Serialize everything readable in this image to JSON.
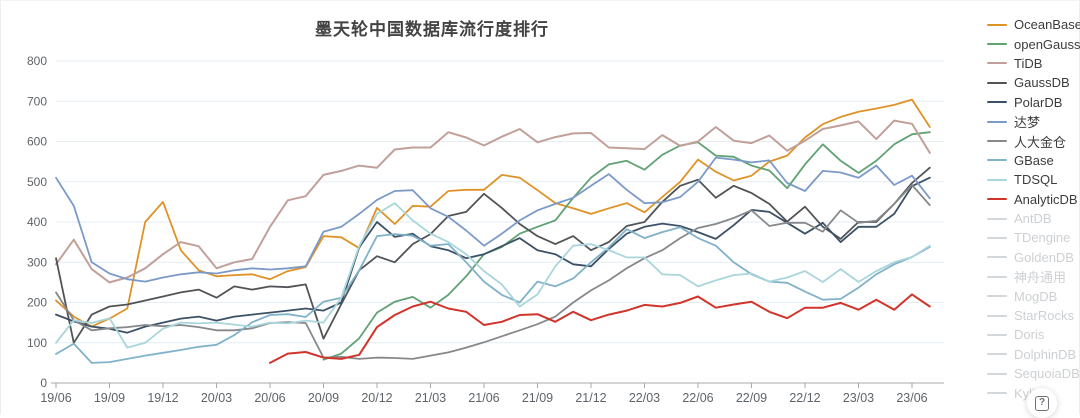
{
  "title": "墨天轮中国数据库流行度排行",
  "help_button": {
    "label": "?"
  },
  "chart_data": {
    "type": "line",
    "title": "墨天轮中国数据库流行度排行",
    "grid": true,
    "legend_position": "right",
    "ylim": [
      0,
      800
    ],
    "y_ticks": [
      0,
      100,
      200,
      300,
      400,
      500,
      600,
      700,
      800
    ],
    "x_tick_labels": [
      "19/06",
      "19/09",
      "19/12",
      "20/03",
      "20/06",
      "20/09",
      "20/12",
      "21/03",
      "21/06",
      "21/09",
      "21/12",
      "22/03",
      "22/06",
      "22/09",
      "22/12",
      "23/03",
      "23/06"
    ],
    "x": [
      "19/06",
      "19/07",
      "19/08",
      "19/09",
      "19/10",
      "19/11",
      "19/12",
      "20/01",
      "20/02",
      "20/03",
      "20/04",
      "20/05",
      "20/06",
      "20/07",
      "20/08",
      "20/09",
      "20/10",
      "20/11",
      "20/12",
      "21/01",
      "21/02",
      "21/03",
      "21/04",
      "21/05",
      "21/06",
      "21/07",
      "21/08",
      "21/09",
      "21/10",
      "21/11",
      "21/12",
      "22/01",
      "22/02",
      "22/03",
      "22/04",
      "22/05",
      "22/06",
      "22/07",
      "22/08",
      "22/09",
      "22/10",
      "22/11",
      "22/12",
      "23/01",
      "23/02",
      "23/03",
      "23/04",
      "23/05",
      "23/06",
      "23/07"
    ],
    "series": [
      {
        "id": "oceanbase",
        "name": "OceanBase",
        "color": "#df9226",
        "width": 1.8,
        "muted": false,
        "values": [
          205,
          165,
          140,
          160,
          185,
          400,
          450,
          330,
          280,
          265,
          268,
          270,
          258,
          278,
          288,
          365,
          362,
          335,
          435,
          395,
          440,
          438,
          477,
          480,
          480,
          517,
          510,
          479,
          447,
          434,
          420,
          434,
          447,
          424,
          462,
          500,
          555,
          525,
          503,
          515,
          550,
          565,
          610,
          643,
          661,
          674,
          682,
          691,
          704,
          636
        ]
      },
      {
        "id": "opengauss",
        "name": "openGauss",
        "color": "#61a273",
        "width": 1.8,
        "muted": false,
        "values": [
          null,
          null,
          null,
          null,
          null,
          null,
          null,
          null,
          null,
          null,
          null,
          null,
          null,
          null,
          null,
          58,
          73,
          111,
          175,
          202,
          214,
          187,
          219,
          265,
          320,
          338,
          371,
          388,
          404,
          460,
          510,
          543,
          552,
          530,
          567,
          590,
          598,
          565,
          562,
          540,
          528,
          484,
          543,
          593,
          552,
          522,
          552,
          593,
          618,
          623
        ]
      },
      {
        "id": "tidb",
        "name": "TiDB",
        "color": "#c2a09a",
        "width": 2,
        "muted": false,
        "values": [
          295,
          356,
          283,
          250,
          262,
          285,
          320,
          350,
          340,
          285,
          300,
          308,
          388,
          454,
          464,
          517,
          527,
          540,
          535,
          580,
          585,
          585,
          623,
          610,
          590,
          612,
          631,
          598,
          611,
          620,
          621,
          585,
          583,
          581,
          616,
          589,
          600,
          636,
          602,
          596,
          615,
          577,
          602,
          631,
          640,
          650,
          606,
          652,
          644,
          572
        ]
      },
      {
        "id": "gaussdb",
        "name": "GaussDB",
        "color": "#515457",
        "width": 1.8,
        "muted": false,
        "values": [
          310,
          100,
          170,
          190,
          195,
          205,
          215,
          225,
          232,
          212,
          240,
          232,
          240,
          238,
          245,
          110,
          196,
          280,
          315,
          300,
          345,
          370,
          415,
          425,
          470,
          435,
          395,
          365,
          345,
          365,
          330,
          350,
          390,
          400,
          450,
          490,
          505,
          460,
          490,
          472,
          445,
          401,
          438,
          388,
          358,
          400,
          400,
          445,
          497,
          535
        ]
      },
      {
        "id": "polardb",
        "name": "PolarDB",
        "color": "#3d5166",
        "width": 1.8,
        "muted": false,
        "values": [
          170,
          153,
          140,
          135,
          125,
          140,
          150,
          160,
          165,
          155,
          165,
          170,
          175,
          180,
          185,
          180,
          200,
          337,
          400,
          363,
          371,
          340,
          330,
          310,
          320,
          340,
          360,
          330,
          320,
          295,
          290,
          333,
          371,
          388,
          396,
          390,
          375,
          358,
          392,
          430,
          425,
          398,
          371,
          398,
          350,
          388,
          388,
          420,
          489,
          510
        ]
      },
      {
        "id": "dameng",
        "name": "达梦",
        "color": "#7b9ac8",
        "width": 1.8,
        "muted": false,
        "values": [
          510,
          440,
          300,
          272,
          258,
          252,
          262,
          270,
          275,
          272,
          280,
          285,
          282,
          285,
          290,
          376,
          388,
          420,
          455,
          477,
          479,
          434,
          413,
          379,
          341,
          371,
          404,
          429,
          445,
          460,
          490,
          519,
          480,
          447,
          449,
          462,
          500,
          560,
          555,
          548,
          553,
          497,
          477,
          527,
          523,
          510,
          540,
          492,
          515,
          459
        ]
      },
      {
        "id": "kingbase",
        "name": "人大金仓",
        "color": "#86888b",
        "width": 1.8,
        "muted": false,
        "values": [
          225,
          156,
          131,
          136,
          139,
          144,
          141,
          144,
          139,
          131,
          131,
          136,
          149,
          151,
          149,
          63,
          65,
          60,
          63,
          62,
          60,
          68,
          76,
          88,
          101,
          116,
          131,
          146,
          165,
          200,
          230,
          255,
          285,
          310,
          330,
          360,
          385,
          395,
          410,
          429,
          390,
          398,
          398,
          376,
          429,
          398,
          403,
          445,
          492,
          442
        ]
      },
      {
        "id": "gbase",
        "name": "GBase",
        "color": "#81b2c9",
        "width": 1.8,
        "muted": false,
        "values": [
          72,
          98,
          50,
          52,
          60,
          68,
          75,
          82,
          90,
          95,
          119,
          151,
          169,
          171,
          164,
          202,
          212,
          280,
          365,
          370,
          366,
          341,
          345,
          300,
          252,
          219,
          200,
          252,
          240,
          260,
          300,
          337,
          382,
          360,
          375,
          387,
          360,
          341,
          300,
          270,
          252,
          249,
          227,
          207,
          209,
          237,
          270,
          295,
          313,
          338
        ]
      },
      {
        "id": "tdsql",
        "name": "TDSQL",
        "color": "#a9d5dc",
        "width": 1.8,
        "muted": false,
        "values": [
          100,
          156,
          149,
          161,
          88,
          100,
          135,
          150,
          148,
          150,
          145,
          140,
          150,
          148,
          155,
          150,
          212,
          340,
          420,
          447,
          404,
          371,
          350,
          320,
          278,
          245,
          190,
          220,
          290,
          341,
          345,
          330,
          312,
          312,
          270,
          268,
          240,
          255,
          268,
          272,
          252,
          262,
          278,
          251,
          283,
          251,
          278,
          300,
          313,
          341
        ]
      },
      {
        "id": "analyticdb",
        "name": "AnalyticDB",
        "color": "#d1342b",
        "width": 2,
        "muted": false,
        "values": [
          null,
          null,
          null,
          null,
          null,
          null,
          null,
          null,
          null,
          null,
          null,
          null,
          50,
          73,
          77,
          63,
          60,
          70,
          139,
          169,
          190,
          202,
          185,
          177,
          144,
          152,
          169,
          171,
          152,
          177,
          156,
          170,
          180,
          194,
          190,
          199,
          215,
          187,
          195,
          202,
          177,
          161,
          187,
          187,
          199,
          182,
          207,
          182,
          220,
          190
        ]
      },
      {
        "id": "antdb",
        "name": "AntDB",
        "color": "#d4d7da",
        "width": 2,
        "muted": true,
        "values": []
      },
      {
        "id": "tdengine",
        "name": "TDengine",
        "color": "#d4d7da",
        "width": 2,
        "muted": true,
        "values": []
      },
      {
        "id": "goldendb",
        "name": "GoldenDB",
        "color": "#d4d7da",
        "width": 2,
        "muted": true,
        "values": []
      },
      {
        "id": "shentong",
        "name": "神舟通用",
        "color": "#d4d7da",
        "width": 2,
        "muted": true,
        "values": []
      },
      {
        "id": "mogdb",
        "name": "MogDB",
        "color": "#d4d7da",
        "width": 2,
        "muted": true,
        "values": []
      },
      {
        "id": "starrocks",
        "name": "StarRocks",
        "color": "#d4d7da",
        "width": 2,
        "muted": true,
        "values": []
      },
      {
        "id": "doris",
        "name": "Doris",
        "color": "#d4d7da",
        "width": 2,
        "muted": true,
        "values": []
      },
      {
        "id": "dolphindb",
        "name": "DolphinDB",
        "color": "#d4d7da",
        "width": 2,
        "muted": true,
        "values": []
      },
      {
        "id": "sequoiadb",
        "name": "SequoiaDB",
        "color": "#d4d7da",
        "width": 2,
        "muted": true,
        "values": []
      },
      {
        "id": "kyligence",
        "name": "Kylige",
        "color": "#d4d7da",
        "width": 2,
        "muted": true,
        "values": []
      }
    ]
  }
}
